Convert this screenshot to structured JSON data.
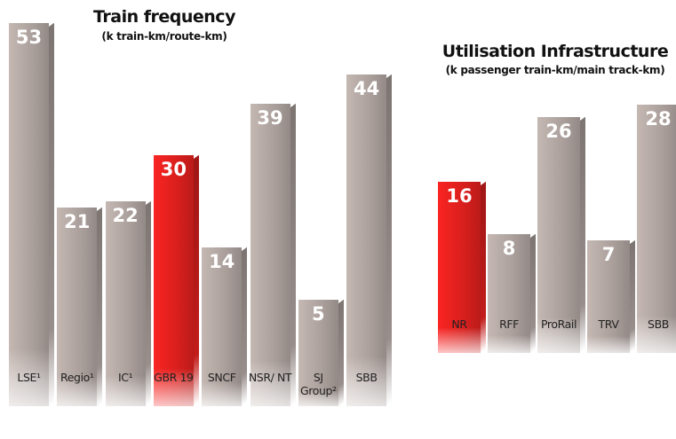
{
  "chart_data": [
    {
      "type": "bar",
      "title": "Train frequency",
      "subtitle": "(k train-km/route-km)",
      "categories": [
        "LSE¹",
        "Regio¹",
        "IC¹",
        "GBR 19",
        "SNCF",
        "NSR/ NT",
        "SJ Group²",
        "SBB"
      ],
      "values": [
        53,
        21,
        22,
        30,
        14,
        39,
        5,
        44
      ],
      "colors": [
        "#b3a7a3",
        "#b3a7a3",
        "#b3a7a3",
        "#e3211f",
        "#b3a7a3",
        "#b3a7a3",
        "#b3a7a3",
        "#b3a7a3"
      ]
    },
    {
      "type": "bar",
      "title": "Utilisation Infrastructure",
      "subtitle": "(k passenger train-km/main track-km)",
      "categories": [
        "NR",
        "RFF",
        "ProRail",
        "TRV",
        "SBB"
      ],
      "values": [
        16,
        8,
        26,
        7,
        28
      ],
      "colors": [
        "#e3211f",
        "#b3a7a3",
        "#b3a7a3",
        "#b3a7a3",
        "#b3a7a3"
      ]
    }
  ]
}
